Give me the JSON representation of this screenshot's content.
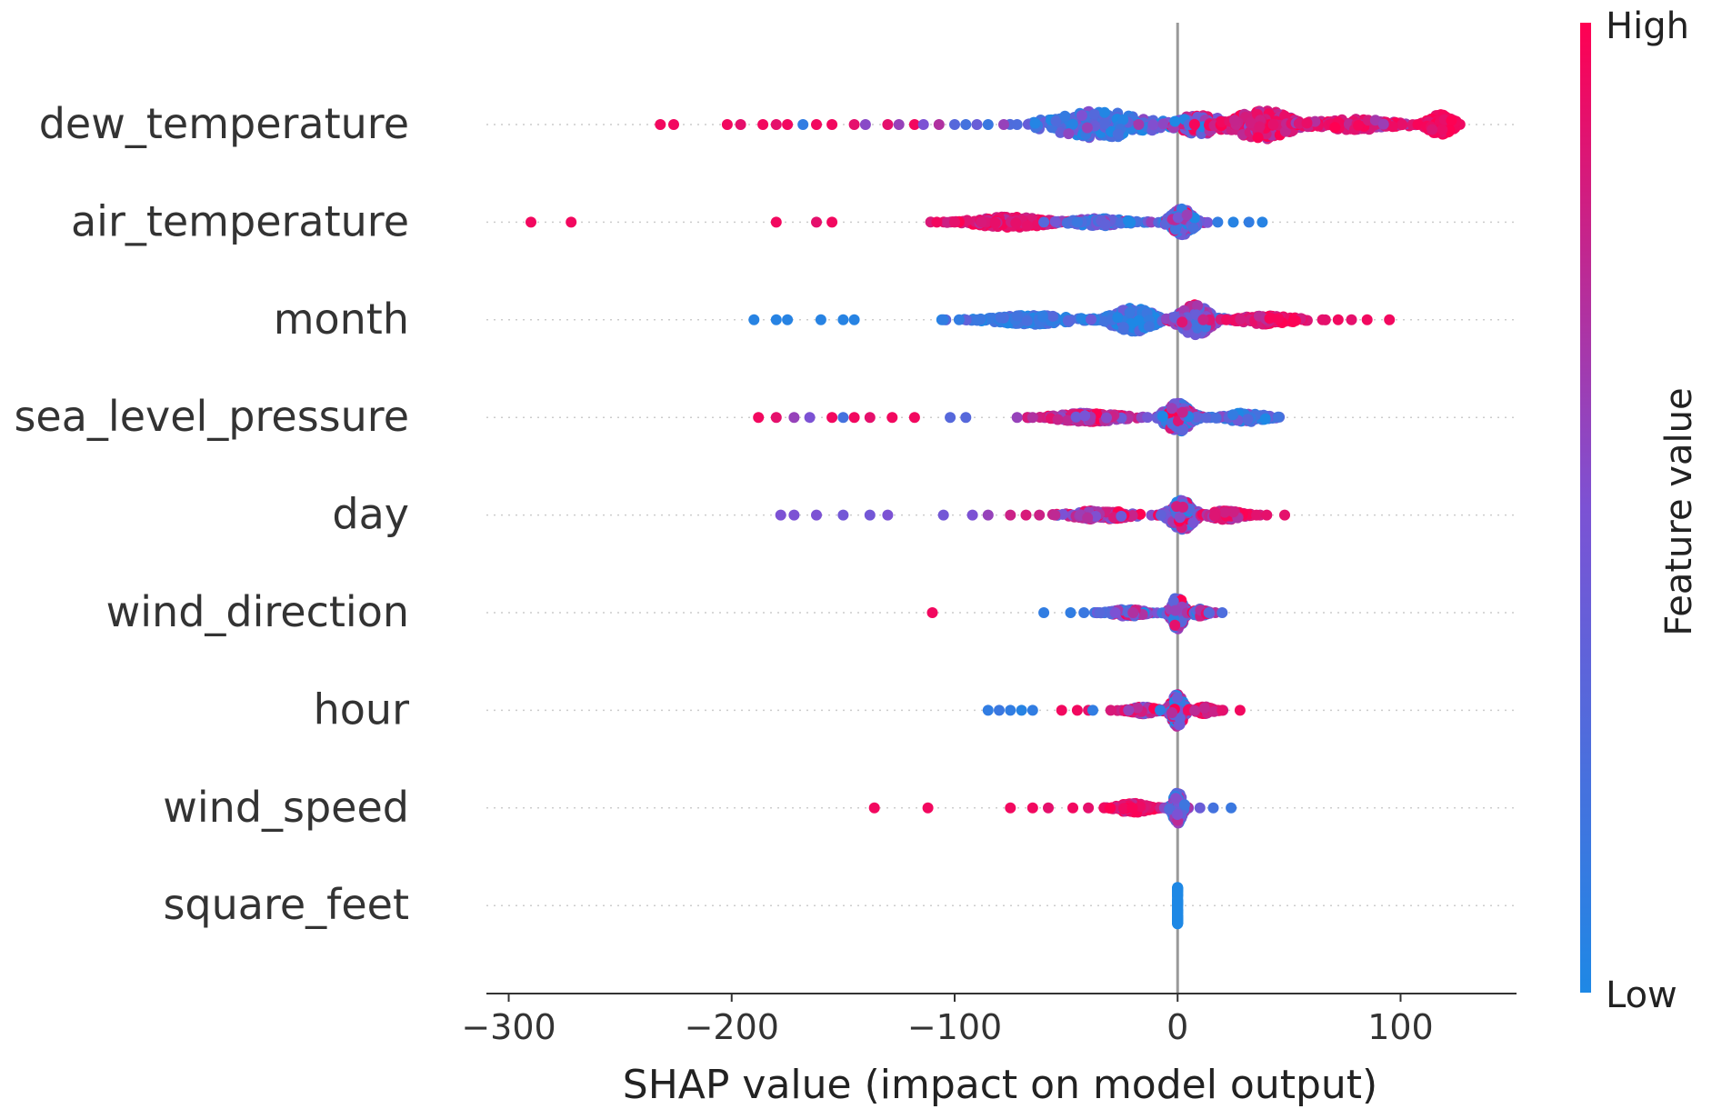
{
  "chart_data": {
    "type": "scatter",
    "subtype": "shap-beeswarm-summary",
    "xlabel": "SHAP value (impact on model output)",
    "xlim": [
      -310,
      152
    ],
    "x_ticks": [
      {
        "value": -300,
        "label": "−300"
      },
      {
        "value": -200,
        "label": "−200"
      },
      {
        "value": -100,
        "label": "−100"
      },
      {
        "value": 0,
        "label": "0"
      },
      {
        "value": 100,
        "label": "100"
      }
    ],
    "colorbar": {
      "title": "Feature value",
      "high_label": "High",
      "low_label": "Low",
      "high_color": "#ff0052",
      "mid_color": "#7c52d4",
      "low_color": "#1e88e5"
    },
    "features": [
      {
        "name": "dew_temperature",
        "min": -232,
        "max": 132,
        "outliers": [
          [
            -232,
            0.95
          ],
          [
            -226,
            0.95
          ],
          [
            -202,
            0.95
          ],
          [
            -196,
            0.9
          ],
          [
            -186,
            0.95
          ],
          [
            -180,
            0.9
          ],
          [
            -175,
            0.95
          ],
          [
            -168,
            0.1
          ],
          [
            -162,
            0.95
          ],
          [
            -155,
            0.95
          ],
          [
            -145,
            0.9
          ],
          [
            -140,
            0.55
          ],
          [
            -130,
            0.9
          ],
          [
            -125,
            0.6
          ],
          [
            -118,
            0.95
          ],
          [
            -114,
            0.5
          ],
          [
            -107,
            0.7
          ],
          [
            -100,
            0.3
          ],
          [
            -95,
            0.2
          ],
          [
            -90,
            0.4
          ],
          [
            -85,
            0.15
          ],
          [
            -78,
            0.6
          ],
          [
            -72,
            0.25
          ]
        ],
        "clusters": [
          {
            "center": -35,
            "spread": 30,
            "n": 220,
            "height": 30,
            "color_mean": 0.22,
            "color_sd": 0.18
          },
          {
            "center": 10,
            "spread": 14,
            "n": 110,
            "height": 22,
            "color_mean": 0.55,
            "color_sd": 0.25
          },
          {
            "center": 38,
            "spread": 18,
            "n": 220,
            "height": 32,
            "color_mean": 0.85,
            "color_sd": 0.12
          },
          {
            "center": 78,
            "spread": 26,
            "n": 120,
            "height": 12,
            "color_mean": 0.85,
            "color_sd": 0.12
          },
          {
            "center": 118,
            "spread": 8,
            "n": 130,
            "height": 22,
            "color_mean": 0.96,
            "color_sd": 0.04
          }
        ]
      },
      {
        "name": "air_temperature",
        "min": -290,
        "max": 38,
        "outliers": [
          [
            -290,
            0.95
          ],
          [
            -272,
            0.95
          ],
          [
            -180,
            0.95
          ],
          [
            -162,
            0.9
          ],
          [
            -155,
            0.95
          ],
          [
            -108,
            0.95
          ],
          [
            -100,
            0.9
          ],
          [
            -88,
            0.85
          ],
          [
            -60,
            0.3
          ],
          [
            -45,
            0.15
          ],
          [
            18,
            0.1
          ],
          [
            25,
            0.05
          ],
          [
            32,
            0.1
          ],
          [
            38,
            0.05
          ]
        ],
        "clusters": [
          {
            "center": -75,
            "spread": 22,
            "n": 220,
            "height": 12,
            "color_mean": 0.9,
            "color_sd": 0.08
          },
          {
            "center": -35,
            "spread": 18,
            "n": 110,
            "height": 8,
            "color_mean": 0.3,
            "color_sd": 0.2
          },
          {
            "center": 2,
            "spread": 7,
            "n": 190,
            "height": 30,
            "color_mean": 0.4,
            "color_sd": 0.3
          }
        ]
      },
      {
        "name": "month",
        "min": -190,
        "max": 95,
        "outliers": [
          [
            -190,
            0.05
          ],
          [
            -180,
            0.05
          ],
          [
            -175,
            0.05
          ],
          [
            -160,
            0.05
          ],
          [
            -150,
            0.05
          ],
          [
            -145,
            0.05
          ],
          [
            -105,
            0.1
          ],
          [
            -98,
            0.1
          ],
          [
            -90,
            0.15
          ],
          [
            65,
            0.9
          ],
          [
            72,
            0.95
          ],
          [
            78,
            0.9
          ],
          [
            85,
            0.95
          ],
          [
            95,
            0.95
          ]
        ],
        "clusters": [
          {
            "center": -65,
            "spread": 25,
            "n": 170,
            "height": 10,
            "color_mean": 0.12,
            "color_sd": 0.1
          },
          {
            "center": -20,
            "spread": 14,
            "n": 170,
            "height": 26,
            "color_mean": 0.15,
            "color_sd": 0.15
          },
          {
            "center": 8,
            "spread": 10,
            "n": 230,
            "height": 34,
            "color_mean": 0.55,
            "color_sd": 0.25
          },
          {
            "center": 40,
            "spread": 18,
            "n": 120,
            "height": 10,
            "color_mean": 0.9,
            "color_sd": 0.08
          }
        ]
      },
      {
        "name": "sea_level_pressure",
        "min": -188,
        "max": 55,
        "outliers": [
          [
            -188,
            0.95
          ],
          [
            -180,
            0.9
          ],
          [
            -172,
            0.6
          ],
          [
            -165,
            0.5
          ],
          [
            -155,
            0.95
          ],
          [
            -150,
            0.2
          ],
          [
            -145,
            0.95
          ],
          [
            -138,
            0.9
          ],
          [
            -128,
            0.95
          ],
          [
            -118,
            0.95
          ],
          [
            -102,
            0.3
          ],
          [
            -95,
            0.3
          ],
          [
            -72,
            0.6
          ],
          [
            -65,
            0.7
          ]
        ],
        "clusters": [
          {
            "center": -40,
            "spread": 20,
            "n": 150,
            "height": 10,
            "color_mean": 0.75,
            "color_sd": 0.18
          },
          {
            "center": 0,
            "spread": 8,
            "n": 200,
            "height": 32,
            "color_mean": 0.5,
            "color_sd": 0.3
          },
          {
            "center": 30,
            "spread": 12,
            "n": 110,
            "height": 10,
            "color_mean": 0.25,
            "color_sd": 0.2
          }
        ]
      },
      {
        "name": "day",
        "min": -178,
        "max": 48,
        "outliers": [
          [
            -178,
            0.5
          ],
          [
            -172,
            0.5
          ],
          [
            -162,
            0.5
          ],
          [
            -150,
            0.45
          ],
          [
            -138,
            0.45
          ],
          [
            -130,
            0.5
          ],
          [
            -105,
            0.45
          ],
          [
            -92,
            0.5
          ],
          [
            -85,
            0.6
          ],
          [
            -75,
            0.8
          ],
          [
            -68,
            0.85
          ],
          [
            -62,
            0.8
          ],
          [
            -55,
            0.75
          ],
          [
            40,
            0.9
          ],
          [
            48,
            0.9
          ]
        ],
        "clusters": [
          {
            "center": -35,
            "spread": 18,
            "n": 140,
            "height": 10,
            "color_mean": 0.75,
            "color_sd": 0.18
          },
          {
            "center": 2,
            "spread": 7,
            "n": 220,
            "height": 34,
            "color_mean": 0.5,
            "color_sd": 0.3
          },
          {
            "center": 22,
            "spread": 10,
            "n": 120,
            "height": 10,
            "color_mean": 0.85,
            "color_sd": 0.1
          }
        ]
      },
      {
        "name": "wind_direction",
        "min": -110,
        "max": 20,
        "outliers": [
          [
            -110,
            0.95
          ],
          [
            -60,
            0.1
          ],
          [
            -48,
            0.1
          ],
          [
            -42,
            0.15
          ],
          [
            -35,
            0.3
          ],
          [
            -28,
            0.5
          ],
          [
            -20,
            0.7
          ],
          [
            14,
            0.3
          ],
          [
            20,
            0.25
          ]
        ],
        "clusters": [
          {
            "center": -22,
            "spread": 10,
            "n": 100,
            "height": 8,
            "color_mean": 0.45,
            "color_sd": 0.28
          },
          {
            "center": 0,
            "spread": 4,
            "n": 180,
            "height": 36,
            "color_mean": 0.55,
            "color_sd": 0.3
          },
          {
            "center": 10,
            "spread": 4,
            "n": 60,
            "height": 8,
            "color_mean": 0.6,
            "color_sd": 0.3
          }
        ]
      },
      {
        "name": "hour",
        "min": -85,
        "max": 28,
        "outliers": [
          [
            -85,
            0.1
          ],
          [
            -80,
            0.15
          ],
          [
            -75,
            0.1
          ],
          [
            -70,
            0.05
          ],
          [
            -65,
            0.1
          ],
          [
            -52,
            0.95
          ],
          [
            -45,
            0.95
          ],
          [
            -40,
            0.9
          ],
          [
            -38,
            0.1
          ],
          [
            -30,
            0.85
          ],
          [
            -22,
            0.6
          ],
          [
            20,
            0.9
          ],
          [
            28,
            0.95
          ]
        ],
        "clusters": [
          {
            "center": -15,
            "spread": 8,
            "n": 100,
            "height": 8,
            "color_mean": 0.75,
            "color_sd": 0.2
          },
          {
            "center": 0,
            "spread": 4,
            "n": 180,
            "height": 36,
            "color_mean": 0.55,
            "color_sd": 0.3
          },
          {
            "center": 12,
            "spread": 5,
            "n": 70,
            "height": 8,
            "color_mean": 0.85,
            "color_sd": 0.1
          }
        ]
      },
      {
        "name": "wind_speed",
        "min": -136,
        "max": 24,
        "outliers": [
          [
            -136,
            0.95
          ],
          [
            -112,
            0.95
          ],
          [
            -75,
            0.95
          ],
          [
            -65,
            0.95
          ],
          [
            -58,
            0.9
          ],
          [
            -47,
            0.95
          ],
          [
            -40,
            0.9
          ],
          [
            10,
            0.4
          ],
          [
            16,
            0.2
          ],
          [
            24,
            0.15
          ]
        ],
        "clusters": [
          {
            "center": -20,
            "spread": 10,
            "n": 150,
            "height": 10,
            "color_mean": 0.9,
            "color_sd": 0.08
          },
          {
            "center": 0,
            "spread": 3,
            "n": 170,
            "height": 36,
            "color_mean": 0.45,
            "color_sd": 0.3
          }
        ]
      },
      {
        "name": "square_feet",
        "min": 0,
        "max": 0,
        "outliers": [],
        "clusters": [
          {
            "center": 0,
            "spread": 0.3,
            "n": 120,
            "height": 40,
            "color_mean": 0.0,
            "color_sd": 0.0
          }
        ]
      }
    ]
  }
}
